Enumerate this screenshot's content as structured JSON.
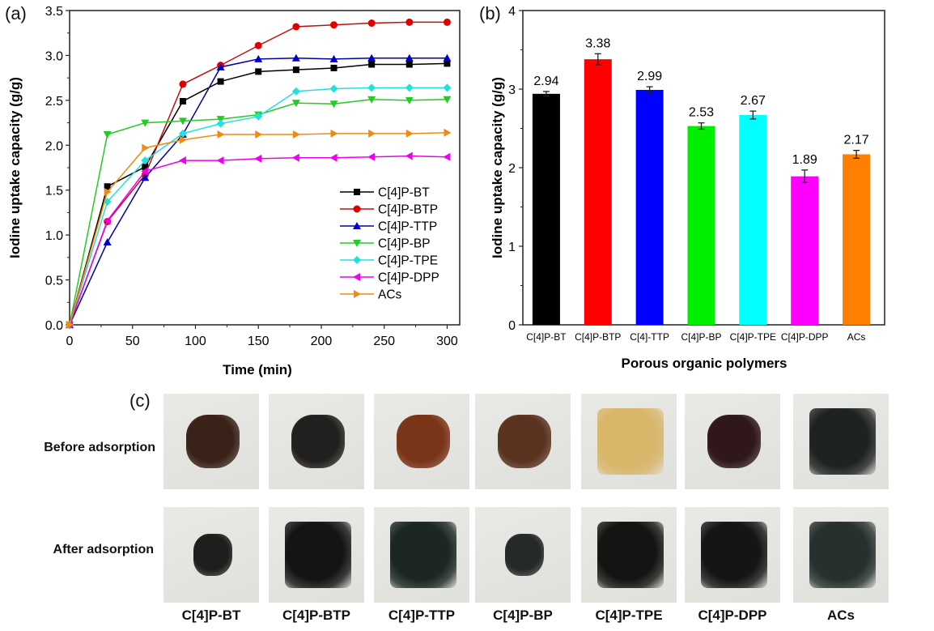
{
  "panels": {
    "a_label": "(a)",
    "b_label": "(b)",
    "c_label": "(c)"
  },
  "chart_data": [
    {
      "type": "line",
      "panel": "a",
      "title": "",
      "xlabel": "Time (min)",
      "ylabel": "Iodine uptake capacity (g/g)",
      "xlim": [
        0,
        310
      ],
      "ylim": [
        0,
        3.5
      ],
      "xticks": [
        0,
        50,
        100,
        150,
        200,
        250,
        300
      ],
      "xtick_labels": [
        "0",
        "50",
        "100",
        "150",
        "200",
        "250",
        "300"
      ],
      "yticks": [
        0,
        0.5,
        1.0,
        1.5,
        2.0,
        2.5,
        3.0,
        3.5
      ],
      "ytick_labels": [
        "0.0",
        "0.5",
        "1.0",
        "1.5",
        "2.0",
        "2.5",
        "3.0",
        "3.5"
      ],
      "grid": false,
      "legend_position": "bottom-right",
      "x": [
        0,
        30,
        60,
        90,
        120,
        150,
        180,
        210,
        240,
        270,
        300
      ],
      "series": [
        {
          "name": "C[4]P-BT",
          "color": "#000000",
          "marker": "square",
          "values": [
            0,
            1.54,
            1.76,
            2.49,
            2.71,
            2.82,
            2.84,
            2.86,
            2.9,
            2.9,
            2.91
          ]
        },
        {
          "name": "C[4]P-BTP",
          "color": "#e00000",
          "marker": "circle",
          "values": [
            0,
            1.15,
            1.67,
            2.68,
            2.89,
            3.11,
            3.32,
            3.34,
            3.36,
            3.37,
            3.37
          ]
        },
        {
          "name": "C[4]P-TTP",
          "color": "#0000cc",
          "marker": "triangle-up",
          "values": [
            0,
            0.92,
            1.64,
            2.12,
            2.87,
            2.96,
            2.97,
            2.96,
            2.97,
            2.97,
            2.97
          ]
        },
        {
          "name": "C[4]P-BP",
          "color": "#22cc22",
          "marker": "triangle-down",
          "values": [
            0,
            2.12,
            2.25,
            2.27,
            2.29,
            2.34,
            2.47,
            2.46,
            2.51,
            2.5,
            2.51
          ]
        },
        {
          "name": "C[4]P-TPE",
          "color": "#22e0e0",
          "marker": "diamond",
          "values": [
            0,
            1.37,
            1.83,
            2.13,
            2.24,
            2.32,
            2.6,
            2.63,
            2.64,
            2.64,
            2.64
          ]
        },
        {
          "name": "C[4]P-DPP",
          "color": "#ee00ee",
          "marker": "triangle-left",
          "values": [
            0,
            1.16,
            1.71,
            1.83,
            1.83,
            1.85,
            1.86,
            1.86,
            1.87,
            1.88,
            1.87
          ]
        },
        {
          "name": "ACs",
          "color": "#f08a10",
          "marker": "triangle-right",
          "values": [
            0,
            1.48,
            1.97,
            2.06,
            2.12,
            2.12,
            2.12,
            2.13,
            2.13,
            2.13,
            2.14
          ]
        }
      ]
    },
    {
      "type": "bar",
      "panel": "b",
      "title": "",
      "xlabel": "Porous organic polymers",
      "ylabel": "Iodine uptake capacity (g/g)",
      "ylim": [
        0,
        4
      ],
      "yticks": [
        0,
        1,
        2,
        3,
        4
      ],
      "ytick_labels": [
        "0",
        "1",
        "2",
        "3",
        "4"
      ],
      "grid": false,
      "categories": [
        "C[4]P-BT",
        "C[4]P-BTP",
        "C[4]-TTP",
        "C[4]P-BP",
        "C[4]P-TPE",
        "C[4]P-DPP",
        "ACs"
      ],
      "values": [
        2.94,
        3.38,
        2.99,
        2.53,
        2.67,
        1.89,
        2.17
      ],
      "value_labels": [
        "2.94",
        "3.38",
        "2.99",
        "2.53",
        "2.67",
        "1.89",
        "2.17"
      ],
      "errors": [
        0.03,
        0.07,
        0.04,
        0.04,
        0.05,
        0.08,
        0.05
      ],
      "colors": [
        "#000000",
        "#ff0000",
        "#0000ff",
        "#00ee00",
        "#00ffff",
        "#ff00ff",
        "#ff8000"
      ]
    }
  ],
  "photos": {
    "row_labels": [
      "Before adsorption",
      "After adsorption"
    ],
    "samples": [
      {
        "name": "C[4]P-BT",
        "before_color": "#3a2218",
        "after_color": "#1e1e1c"
      },
      {
        "name": "C[4]P-BTP",
        "before_color": "#22201e",
        "after_color": "#141414"
      },
      {
        "name": "C[4]P-TTP",
        "before_color": "#7a3418",
        "after_color": "#1c2622"
      },
      {
        "name": "C[4]P-BP",
        "before_color": "#5a3220",
        "after_color": "#26292a"
      },
      {
        "name": "C[4]P-TPE",
        "before_color": "#d8b66a",
        "after_color": "#161412"
      },
      {
        "name": "C[4]P-DPP",
        "before_color": "#30181a",
        "after_color": "#151515"
      },
      {
        "name": "ACs",
        "before_color": "#1e2220",
        "after_color": "#27302e"
      }
    ],
    "background_color": "#dfe0dc"
  }
}
